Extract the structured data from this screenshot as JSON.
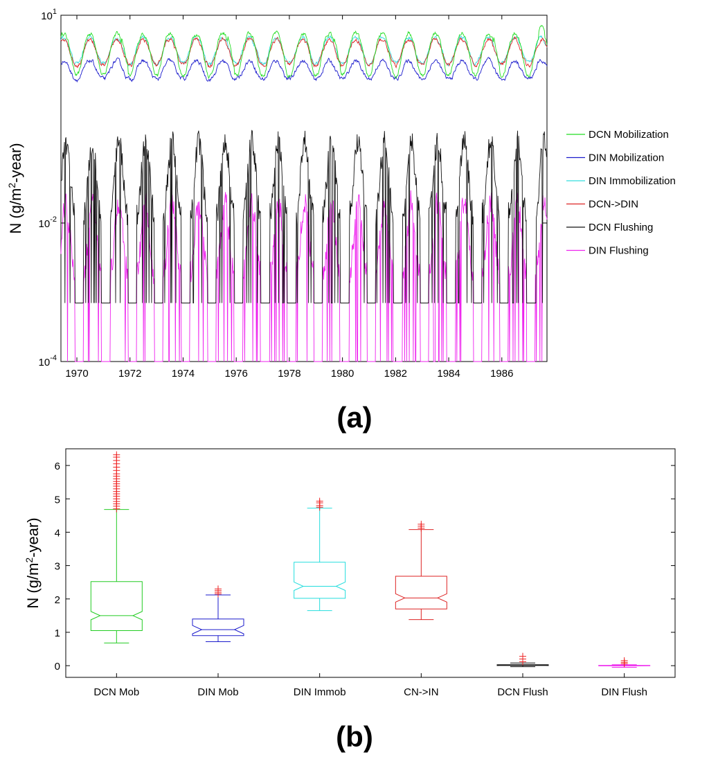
{
  "chart_data": [
    {
      "type": "line",
      "panel_label": "(a)",
      "ylabel": "N (g/m2-year)",
      "ylabel_parts": [
        "N (g/m",
        "2",
        "-year)"
      ],
      "yscale": "log",
      "ylim": [
        0.0001,
        10
      ],
      "y_ticks": [
        {
          "value": 0.0001,
          "base": "10",
          "exp": "-4"
        },
        {
          "value": 0.01,
          "base": "10",
          "exp": "-2"
        },
        {
          "value": 10,
          "base": "10",
          "exp": "1"
        }
      ],
      "xlim": [
        1969.4,
        1987.7
      ],
      "x_ticks": [
        "1970",
        "1972",
        "1974",
        "1976",
        "1978",
        "1980",
        "1982",
        "1984",
        "1986"
      ],
      "legend_position": "right",
      "series_note": "Weekly seasonal time series, approx. seasonal ranges read from the plot",
      "series": [
        {
          "name": "DCN Mobilization",
          "color": "#22dd22",
          "seasonal_min": 1.35,
          "seasonal_max": 5.5,
          "peaks_higher": [
            1971.8,
            1975.8,
            1979.8,
            1985.8,
            1987.5
          ]
        },
        {
          "name": "DIN Mobilization",
          "color": "#1a1acc",
          "seasonal_min": 1.2,
          "seasonal_max": 2.2
        },
        {
          "name": "DIN Immobilization",
          "color": "#33dddd",
          "seasonal_min": 2.0,
          "seasonal_max": 4.8
        },
        {
          "name": "DCN->DIN",
          "color": "#dd2222",
          "seasonal_min": 1.9,
          "seasonal_max": 4.5
        },
        {
          "name": "DCN Flushing",
          "color": "#111111",
          "baseline": 0.0007,
          "seasonal_max": 0.15
        },
        {
          "name": "DIN Flushing",
          "color": "#ee22ee",
          "baseline": 0.0001,
          "seasonal_max": 0.02
        }
      ]
    },
    {
      "type": "box",
      "panel_label": "(b)",
      "ylabel": "N (g/m2-year)",
      "ylabel_parts": [
        "N (g/m",
        "2",
        "-year)"
      ],
      "ylim": [
        -0.35,
        6.5
      ],
      "y_ticks": [
        "0",
        "1",
        "2",
        "3",
        "4",
        "5",
        "6"
      ],
      "categories": [
        "DCN Mob",
        "DIN Mob",
        "DIN Immob",
        "CN->IN",
        "DCN Flush",
        "DIN Flush"
      ],
      "boxes": [
        {
          "category": "DCN Mob",
          "color": "#22cc22",
          "min": 0.68,
          "q1": 1.05,
          "median": 1.5,
          "q3": 2.52,
          "max": 4.68,
          "outliers": [
            4.7,
            4.78,
            4.85,
            4.92,
            5.0,
            5.08,
            5.15,
            5.22,
            5.3,
            5.38,
            5.45,
            5.52,
            5.6,
            5.68,
            5.75,
            5.85,
            5.95,
            6.05,
            6.15,
            6.25,
            6.32
          ]
        },
        {
          "category": "DIN Mob",
          "color": "#1a1acc",
          "min": 0.72,
          "q1": 0.9,
          "median": 1.08,
          "q3": 1.4,
          "max": 2.12,
          "outliers": [
            2.15,
            2.2,
            2.25,
            2.3
          ]
        },
        {
          "category": "DIN Immob",
          "color": "#22dddd",
          "min": 1.65,
          "q1": 2.02,
          "median": 2.38,
          "q3": 3.1,
          "max": 4.72,
          "outliers": [
            4.75,
            4.8,
            4.88,
            4.93
          ]
        },
        {
          "category": "CN->IN",
          "color": "#dd2222",
          "min": 1.38,
          "q1": 1.7,
          "median": 2.03,
          "q3": 2.68,
          "max": 4.08,
          "outliers": [
            4.12,
            4.18,
            4.24
          ]
        },
        {
          "category": "DCN Flush",
          "color": "#111111",
          "min": -0.03,
          "q1": 0.005,
          "median": 0.01,
          "q3": 0.03,
          "max": 0.08,
          "outliers": [
            0.12,
            0.2,
            0.28
          ],
          "outlier_color": "#ee2222"
        },
        {
          "category": "DIN Flush",
          "color": "#ee22ee",
          "min": -0.05,
          "q1": -0.005,
          "median": 0.0,
          "q3": 0.008,
          "max": 0.03,
          "outliers": [
            0.06,
            0.1,
            0.15
          ],
          "outlier_color": "#ee2222"
        }
      ]
    }
  ]
}
